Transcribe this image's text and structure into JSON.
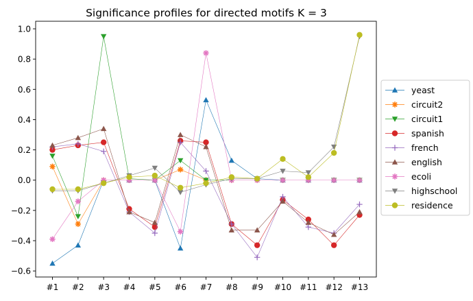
{
  "chart_data": {
    "type": "line",
    "title": "Significance profiles for directed motifs K = 3",
    "xlabel": "",
    "ylabel": "",
    "categories": [
      "#1",
      "#2",
      "#3",
      "#4",
      "#5",
      "#6",
      "#7",
      "#8",
      "#9",
      "#10",
      "#11",
      "#12",
      "#13"
    ],
    "ylim": [
      -0.64,
      1.05
    ],
    "yticks": [
      -0.6,
      -0.4,
      -0.2,
      0.0,
      0.2,
      0.4,
      0.6,
      0.8,
      1.0
    ],
    "ytick_labels": [
      "−0.6",
      "−0.4",
      "−0.2",
      "0.0",
      "0.2",
      "0.4",
      "0.6",
      "0.8",
      "1.0"
    ],
    "grid": false,
    "legend_position": "right",
    "series": [
      {
        "name": "yeast",
        "color": "#1f77b4",
        "marker": "triangle-up",
        "values": [
          -0.55,
          -0.43,
          0.0,
          0.0,
          0.0,
          -0.45,
          0.53,
          0.13,
          0.01,
          0.0,
          0.0,
          0.0,
          0.0
        ]
      },
      {
        "name": "circuit2",
        "color": "#ff7f0e",
        "marker": "star",
        "values": [
          0.09,
          -0.29,
          0.0,
          0.0,
          0.0,
          0.07,
          0.0,
          0.0,
          0.0,
          0.0,
          0.0,
          0.0,
          0.0
        ]
      },
      {
        "name": "circuit1",
        "color": "#2ca02c",
        "marker": "triangle-down",
        "values": [
          0.16,
          -0.24,
          0.95,
          0.01,
          0.0,
          0.13,
          0.0,
          0.0,
          0.0,
          0.0,
          0.0,
          0.0,
          0.0
        ]
      },
      {
        "name": "spanish",
        "color": "#d62728",
        "marker": "circle",
        "values": [
          0.2,
          0.23,
          0.25,
          -0.19,
          -0.31,
          0.26,
          0.25,
          -0.29,
          -0.43,
          -0.13,
          -0.26,
          -0.43,
          -0.23
        ]
      },
      {
        "name": "french",
        "color": "#9467bd",
        "marker": "plus",
        "values": [
          0.22,
          0.24,
          0.19,
          -0.21,
          -0.35,
          0.25,
          0.06,
          -0.29,
          -0.51,
          -0.11,
          -0.31,
          -0.35,
          -0.16
        ]
      },
      {
        "name": "english",
        "color": "#8c564b",
        "marker": "triangle-up",
        "values": [
          0.23,
          0.28,
          0.34,
          -0.21,
          -0.28,
          0.3,
          0.22,
          -0.33,
          -0.33,
          -0.14,
          -0.28,
          -0.36,
          -0.21
        ]
      },
      {
        "name": "ecoli",
        "color": "#e377c2",
        "marker": "star",
        "values": [
          -0.39,
          -0.14,
          0.0,
          0.0,
          0.0,
          -0.34,
          0.84,
          0.0,
          0.0,
          0.0,
          0.0,
          0.0,
          0.0
        ]
      },
      {
        "name": "highschool",
        "color": "#7f7f7f",
        "marker": "triangle-down",
        "values": [
          -0.07,
          -0.07,
          -0.02,
          0.03,
          0.08,
          -0.08,
          -0.03,
          0.01,
          0.01,
          0.06,
          0.05,
          0.22,
          0.95
        ]
      },
      {
        "name": "residence",
        "color": "#bcbd22",
        "marker": "circle",
        "values": [
          -0.06,
          -0.06,
          -0.02,
          0.02,
          0.03,
          -0.05,
          -0.02,
          0.02,
          0.01,
          0.14,
          0.02,
          0.18,
          0.96
        ]
      }
    ]
  }
}
